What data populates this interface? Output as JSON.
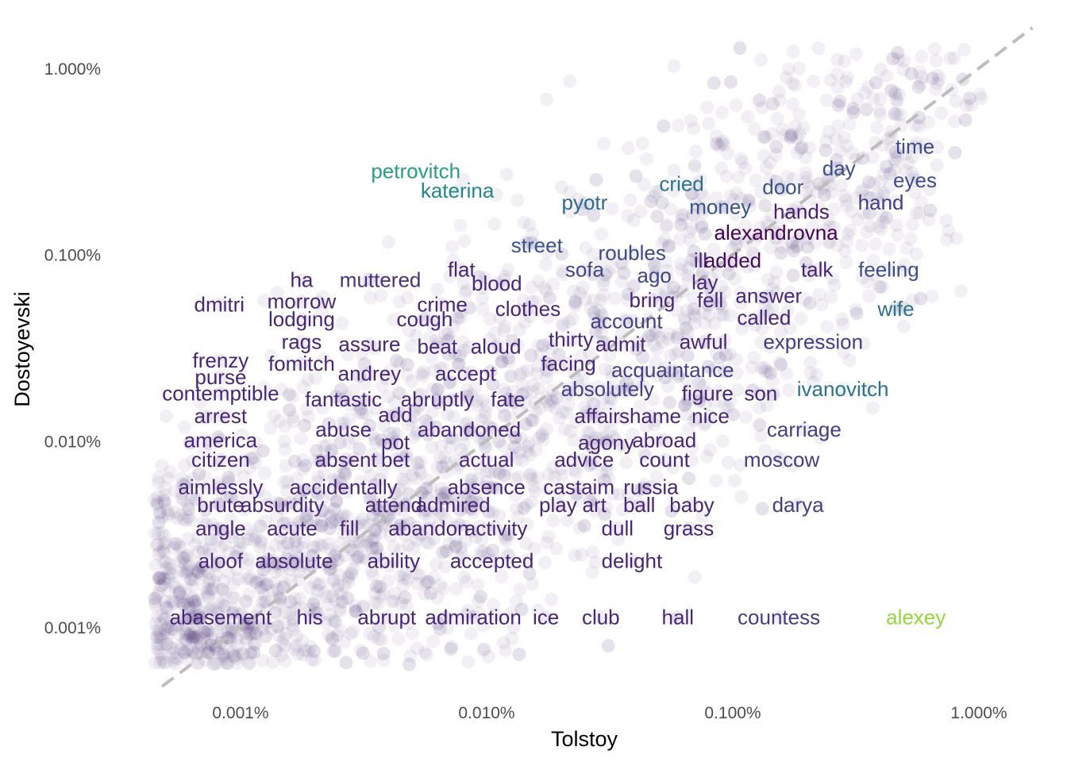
{
  "chart_data": {
    "type": "scatter",
    "xlabel": "Tolstoy",
    "ylabel": "Dostoyevski",
    "x_scale": "log10",
    "y_scale": "log10",
    "x_ticks": [
      {
        "value": 1e-05,
        "label": "0.001%"
      },
      {
        "value": 0.0001,
        "label": "0.010%"
      },
      {
        "value": 0.001,
        "label": "0.100%"
      },
      {
        "value": 0.01,
        "label": "1.000%"
      }
    ],
    "y_ticks": [
      {
        "value": 1e-05,
        "label": "0.001%"
      },
      {
        "value": 0.0001,
        "label": "0.010%"
      },
      {
        "value": 0.001,
        "label": "0.100%"
      },
      {
        "value": 0.01,
        "label": "1.000%"
      }
    ],
    "grid": false,
    "reference_line": {
      "type": "y=x",
      "style": "dashed",
      "color": "#bdbdbd"
    },
    "point_color": "#482677",
    "background_point_count": 3200,
    "labeled_words": [
      {
        "word": "time",
        "x": 0.0055,
        "y": 0.0038,
        "color": "#3f4a8a"
      },
      {
        "word": "day",
        "x": 0.0027,
        "y": 0.0029,
        "color": "#3e4c8a"
      },
      {
        "word": "eyes",
        "x": 0.0055,
        "y": 0.0025,
        "color": "#3f4a8a"
      },
      {
        "word": "petrovitch",
        "x": 5.15e-05,
        "y": 0.0028,
        "color": "#2a9d83"
      },
      {
        "word": "katerina",
        "x": 7.6e-05,
        "y": 0.0022,
        "color": "#24878e"
      },
      {
        "word": "cried",
        "x": 0.00062,
        "y": 0.0024,
        "color": "#2c728e"
      },
      {
        "word": "door",
        "x": 0.0016,
        "y": 0.0023,
        "color": "#3b528b"
      },
      {
        "word": "pyotr",
        "x": 0.00025,
        "y": 0.0019,
        "color": "#31688e"
      },
      {
        "word": "money",
        "x": 0.00089,
        "y": 0.0018,
        "color": "#3b528b"
      },
      {
        "word": "hand",
        "x": 0.004,
        "y": 0.0019,
        "color": "#433e85"
      },
      {
        "word": "hands",
        "x": 0.0019,
        "y": 0.0017,
        "color": "#481f70"
      },
      {
        "word": "alexandrovna",
        "x": 0.0015,
        "y": 0.00131,
        "color": "#440154"
      },
      {
        "word": "street",
        "x": 0.00016,
        "y": 0.00112,
        "color": "#3b528b"
      },
      {
        "word": "roubles",
        "x": 0.00039,
        "y": 0.00102,
        "color": "#3e4a89"
      },
      {
        "word": "ill",
        "x": 0.00074,
        "y": 0.00093,
        "color": "#482576"
      },
      {
        "word": "added",
        "x": 0.001,
        "y": 0.00093,
        "color": "#46085c"
      },
      {
        "word": "talk",
        "x": 0.0022,
        "y": 0.00083,
        "color": "#482576"
      },
      {
        "word": "feeling",
        "x": 0.0043,
        "y": 0.00083,
        "color": "#3e4c8a"
      },
      {
        "word": "flat",
        "x": 7.9e-05,
        "y": 0.00083,
        "color": "#482677"
      },
      {
        "word": "sofa",
        "x": 0.00025,
        "y": 0.00083,
        "color": "#414487"
      },
      {
        "word": "ago",
        "x": 0.00048,
        "y": 0.00077,
        "color": "#414487"
      },
      {
        "word": "lay",
        "x": 0.00077,
        "y": 0.00071,
        "color": "#482677"
      },
      {
        "word": "ha",
        "x": 1.77e-05,
        "y": 0.00073,
        "color": "#482677"
      },
      {
        "word": "muttered",
        "x": 3.7e-05,
        "y": 0.00073,
        "color": "#46337e"
      },
      {
        "word": "blood",
        "x": 0.00011,
        "y": 0.0007,
        "color": "#482576"
      },
      {
        "word": "answer",
        "x": 0.0014,
        "y": 0.0006,
        "color": "#482878"
      },
      {
        "word": "bring",
        "x": 0.00047,
        "y": 0.00057,
        "color": "#482576"
      },
      {
        "word": "fell",
        "x": 0.00081,
        "y": 0.00057,
        "color": "#482576"
      },
      {
        "word": "wife",
        "x": 0.0046,
        "y": 0.00051,
        "color": "#2c728e"
      },
      {
        "word": "dmitri",
        "x": 8.2e-06,
        "y": 0.00054,
        "color": "#482677"
      },
      {
        "word": "morrow",
        "x": 1.77e-05,
        "y": 0.00056,
        "color": "#482677"
      },
      {
        "word": "crime",
        "x": 6.6e-05,
        "y": 0.00054,
        "color": "#482576"
      },
      {
        "word": "clothes",
        "x": 0.000147,
        "y": 0.00051,
        "color": "#482576"
      },
      {
        "word": "called",
        "x": 0.00134,
        "y": 0.00046,
        "color": "#482677"
      },
      {
        "word": "account",
        "x": 0.00037,
        "y": 0.00044,
        "color": "#433e85"
      },
      {
        "word": "lodging",
        "x": 1.77e-05,
        "y": 0.00045,
        "color": "#482677"
      },
      {
        "word": "cough",
        "x": 5.6e-05,
        "y": 0.00045,
        "color": "#482677"
      },
      {
        "word": "thirty",
        "x": 0.00022,
        "y": 0.00035,
        "color": "#482677"
      },
      {
        "word": "admit",
        "x": 0.00035,
        "y": 0.00033,
        "color": "#482677"
      },
      {
        "word": "awful",
        "x": 0.00076,
        "y": 0.00034,
        "color": "#482677"
      },
      {
        "word": "expression",
        "x": 0.00212,
        "y": 0.00034,
        "color": "#433e85"
      },
      {
        "word": "rags",
        "x": 1.77e-05,
        "y": 0.00034,
        "color": "#482677"
      },
      {
        "word": "assure",
        "x": 3.34e-05,
        "y": 0.00033,
        "color": "#482677"
      },
      {
        "word": "beat",
        "x": 6.3e-05,
        "y": 0.00032,
        "color": "#482677"
      },
      {
        "word": "aloud",
        "x": 0.000109,
        "y": 0.00032,
        "color": "#482677"
      },
      {
        "word": "frenzy",
        "x": 8.3e-06,
        "y": 0.00027,
        "color": "#482677"
      },
      {
        "word": "fomitch",
        "x": 1.77e-05,
        "y": 0.00026,
        "color": "#482677"
      },
      {
        "word": "facing",
        "x": 0.000215,
        "y": 0.00026,
        "color": "#482677"
      },
      {
        "word": "acquaintance",
        "x": 0.00057,
        "y": 0.00024,
        "color": "#433e85"
      },
      {
        "word": "andrey",
        "x": 3.34e-05,
        "y": 0.00023,
        "color": "#482677"
      },
      {
        "word": "accept",
        "x": 8.2e-05,
        "y": 0.00023,
        "color": "#482677"
      },
      {
        "word": "purse",
        "x": 8.3e-06,
        "y": 0.00022,
        "color": "#482677"
      },
      {
        "word": "absolutely",
        "x": 0.00031,
        "y": 0.00019,
        "color": "#433e85"
      },
      {
        "word": "ivanovitch",
        "x": 0.0028,
        "y": 0.00019,
        "color": "#2c728e"
      },
      {
        "word": "contemptible",
        "x": 8.3e-06,
        "y": 0.00018,
        "color": "#482677"
      },
      {
        "word": "figure",
        "x": 0.00079,
        "y": 0.00018,
        "color": "#482677"
      },
      {
        "word": "son",
        "x": 0.0013,
        "y": 0.00018,
        "color": "#482677"
      },
      {
        "word": "fantastic",
        "x": 2.62e-05,
        "y": 0.000167,
        "color": "#482677"
      },
      {
        "word": "abruptly",
        "x": 6.31e-05,
        "y": 0.000167,
        "color": "#482677"
      },
      {
        "word": "fate",
        "x": 0.000122,
        "y": 0.000167,
        "color": "#482677"
      },
      {
        "word": "add",
        "x": 4.26e-05,
        "y": 0.000138,
        "color": "#482677"
      },
      {
        "word": "affair",
        "x": 0.000281,
        "y": 0.000136,
        "color": "#482677"
      },
      {
        "word": "shame",
        "x": 0.000462,
        "y": 0.000136,
        "color": "#482677"
      },
      {
        "word": "nice",
        "x": 0.000812,
        "y": 0.000136,
        "color": "#482677"
      },
      {
        "word": "arrest",
        "x": 8.3e-06,
        "y": 0.000136,
        "color": "#482677"
      },
      {
        "word": "abuse",
        "x": 2.62e-05,
        "y": 0.000115,
        "color": "#482677"
      },
      {
        "word": "abandoned",
        "x": 8.49e-05,
        "y": 0.000115,
        "color": "#482677"
      },
      {
        "word": "carriage",
        "x": 0.00195,
        "y": 0.000115,
        "color": "#433e85"
      },
      {
        "word": "america",
        "x": 8.3e-06,
        "y": 0.000101,
        "color": "#482677"
      },
      {
        "word": "pot",
        "x": 4.26e-05,
        "y": 9.85e-05,
        "color": "#482677"
      },
      {
        "word": "agony",
        "x": 0.000306,
        "y": 9.8e-05,
        "color": "#482677"
      },
      {
        "word": "abroad",
        "x": 0.000527,
        "y": 0.000101,
        "color": "#482677"
      },
      {
        "word": "citizen",
        "x": 8.3e-06,
        "y": 7.94e-05,
        "color": "#482677"
      },
      {
        "word": "absent",
        "x": 2.68e-05,
        "y": 7.94e-05,
        "color": "#482677"
      },
      {
        "word": "bet",
        "x": 4.26e-05,
        "y": 7.94e-05,
        "color": "#482677"
      },
      {
        "word": "actual",
        "x": 9.98e-05,
        "y": 7.94e-05,
        "color": "#482677"
      },
      {
        "word": "advice",
        "x": 0.000249,
        "y": 7.94e-05,
        "color": "#482677"
      },
      {
        "word": "count",
        "x": 0.000528,
        "y": 7.94e-05,
        "color": "#482677"
      },
      {
        "word": "moscow",
        "x": 0.00158,
        "y": 7.94e-05,
        "color": "#433e85"
      },
      {
        "word": "aimlessly",
        "x": 8.3e-06,
        "y": 5.65e-05,
        "color": "#482677"
      },
      {
        "word": "accidentally",
        "x": 2.62e-05,
        "y": 5.65e-05,
        "color": "#482677"
      },
      {
        "word": "absence",
        "x": 9.98e-05,
        "y": 5.65e-05,
        "color": "#482677"
      },
      {
        "word": "castaim",
        "x": 0.000237,
        "y": 5.65e-05,
        "color": "#482677"
      },
      {
        "word": "russia",
        "x": 0.000465,
        "y": 5.65e-05,
        "color": "#482677"
      },
      {
        "word": "brute",
        "x": 8.3e-06,
        "y": 4.54e-05,
        "color": "#482677"
      },
      {
        "word": "absurdity",
        "x": 1.48e-05,
        "y": 4.54e-05,
        "color": "#482677"
      },
      {
        "word": "attend",
        "x": 4.19e-05,
        "y": 4.54e-05,
        "color": "#482677"
      },
      {
        "word": "admired",
        "x": 7.3e-05,
        "y": 4.54e-05,
        "color": "#482677"
      },
      {
        "word": "play",
        "x": 0.000195,
        "y": 4.54e-05,
        "color": "#482677"
      },
      {
        "word": "art",
        "x": 0.000274,
        "y": 4.54e-05,
        "color": "#482677"
      },
      {
        "word": "ball",
        "x": 0.000417,
        "y": 4.54e-05,
        "color": "#482677"
      },
      {
        "word": "baby",
        "x": 0.000682,
        "y": 4.54e-05,
        "color": "#482677"
      },
      {
        "word": "darya",
        "x": 0.00184,
        "y": 4.54e-05,
        "color": "#433e85"
      },
      {
        "word": "angle",
        "x": 8.3e-06,
        "y": 3.39e-05,
        "color": "#482677"
      },
      {
        "word": "acute",
        "x": 1.62e-05,
        "y": 3.39e-05,
        "color": "#482677"
      },
      {
        "word": "fill",
        "x": 2.77e-05,
        "y": 3.39e-05,
        "color": "#482677"
      },
      {
        "word": "abandon",
        "x": 5.81e-05,
        "y": 3.39e-05,
        "color": "#482677"
      },
      {
        "word": "activity",
        "x": 0.000109,
        "y": 3.39e-05,
        "color": "#482677"
      },
      {
        "word": "dull",
        "x": 0.00034,
        "y": 3.39e-05,
        "color": "#482677"
      },
      {
        "word": "grass",
        "x": 0.000662,
        "y": 3.39e-05,
        "color": "#482677"
      },
      {
        "word": "aloof",
        "x": 8.3e-06,
        "y": 2.27e-05,
        "color": "#482677"
      },
      {
        "word": "absolute",
        "x": 1.65e-05,
        "y": 2.27e-05,
        "color": "#482677"
      },
      {
        "word": "ability",
        "x": 4.19e-05,
        "y": 2.27e-05,
        "color": "#482677"
      },
      {
        "word": "accepted",
        "x": 0.000105,
        "y": 2.27e-05,
        "color": "#482677"
      },
      {
        "word": "delight",
        "x": 0.000389,
        "y": 2.27e-05,
        "color": "#482677"
      },
      {
        "word": "abasement",
        "x": 8.3e-06,
        "y": 1.13e-05,
        "color": "#482677"
      },
      {
        "word": "his",
        "x": 1.91e-05,
        "y": 1.13e-05,
        "color": "#482677"
      },
      {
        "word": "abrupt",
        "x": 3.93e-05,
        "y": 1.13e-05,
        "color": "#482677"
      },
      {
        "word": "admiration",
        "x": 8.82e-05,
        "y": 1.13e-05,
        "color": "#482677"
      },
      {
        "word": "ice",
        "x": 0.000174,
        "y": 1.13e-05,
        "color": "#482677"
      },
      {
        "word": "club",
        "x": 0.000291,
        "y": 1.13e-05,
        "color": "#482677"
      },
      {
        "word": "hall",
        "x": 0.000598,
        "y": 1.13e-05,
        "color": "#482677"
      },
      {
        "word": "countess",
        "x": 0.00154,
        "y": 1.13e-05,
        "color": "#433e85"
      },
      {
        "word": "alexey",
        "x": 0.00555,
        "y": 1.13e-05,
        "color": "#95d840"
      }
    ]
  }
}
